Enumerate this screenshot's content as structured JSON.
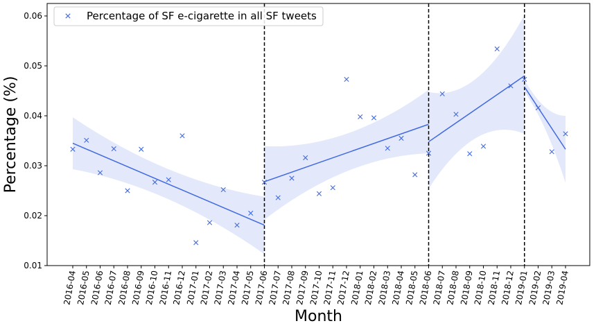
{
  "chart_data": {
    "type": "scatter",
    "title": "",
    "xlabel": "Month",
    "ylabel": "Percentage (%)",
    "ylim": [
      0.01,
      0.0625
    ],
    "yticks": [
      0.01,
      0.02,
      0.03,
      0.04,
      0.05,
      0.06
    ],
    "ytick_labels": [
      "0.01",
      "0.02",
      "0.03",
      "0.04",
      "0.05",
      "0.06"
    ],
    "categories": [
      "2016-04",
      "2016-05",
      "2016-06",
      "2016-07",
      "2016-08",
      "2016-09",
      "2016-10",
      "2016-11",
      "2016-12",
      "2017-01",
      "2017-02",
      "2017-03",
      "2017-04",
      "2017-05",
      "2017-06",
      "2017-07",
      "2017-08",
      "2017-09",
      "2017-10",
      "2017-11",
      "2017-12",
      "2018-01",
      "2018-02",
      "2018-03",
      "2018-04",
      "2018-05",
      "2018-06",
      "2018-07",
      "2018-08",
      "2018-09",
      "2018-10",
      "2018-11",
      "2018-12",
      "2019-01",
      "2019-02",
      "2019-03",
      "2019-04"
    ],
    "series": [
      {
        "name": "Percentage of SF e-cigarette in all SF tweets",
        "marker": "x",
        "color": "#4169e1",
        "values": [
          0.0333,
          0.0351,
          0.0286,
          0.0334,
          0.025,
          0.0333,
          0.0267,
          0.0272,
          0.036,
          0.0146,
          0.0186,
          0.0252,
          0.0181,
          0.0205,
          0.0267,
          0.0236,
          0.0275,
          0.0316,
          0.0244,
          0.0256,
          0.0473,
          0.0398,
          0.0396,
          0.0335,
          0.0355,
          0.0282,
          0.0325,
          0.0444,
          0.0403,
          0.0324,
          0.0339,
          0.0534,
          0.046,
          0.0473,
          0.0416,
          0.0328,
          0.0364
        ]
      }
    ],
    "breakpoints": [
      "2017-06",
      "2018-06",
      "2019-01"
    ],
    "fit_segments": [
      {
        "start": "2016-04",
        "end": "2017-06",
        "y_start": 0.0345,
        "y_end": 0.0181,
        "ci_lower": [
          0.0293,
          0.0123
        ],
        "ci_upper": [
          0.0397,
          0.0238
        ]
      },
      {
        "start": "2017-06",
        "end": "2018-06",
        "y_start": 0.0268,
        "y_end": 0.0383,
        "ci_lower": [
          0.0192,
          0.0325
        ],
        "ci_upper": [
          0.0339,
          0.0452
        ]
      },
      {
        "start": "2018-06",
        "end": "2019-01",
        "y_start": 0.0348,
        "y_end": 0.048,
        "ci_lower": [
          0.0254,
          0.0364
        ],
        "ci_upper": [
          0.0448,
          0.0602
        ]
      },
      {
        "start": "2019-01",
        "end": "2019-04",
        "y_start": 0.0458,
        "y_end": 0.0333,
        "ci_lower": [
          0.0448,
          0.0266
        ],
        "ci_upper": [
          0.0472,
          0.04
        ]
      }
    ],
    "fit_color": "#4169e1",
    "band_color": "#e3e9fa",
    "legend_position": "top-left",
    "grid": false
  }
}
